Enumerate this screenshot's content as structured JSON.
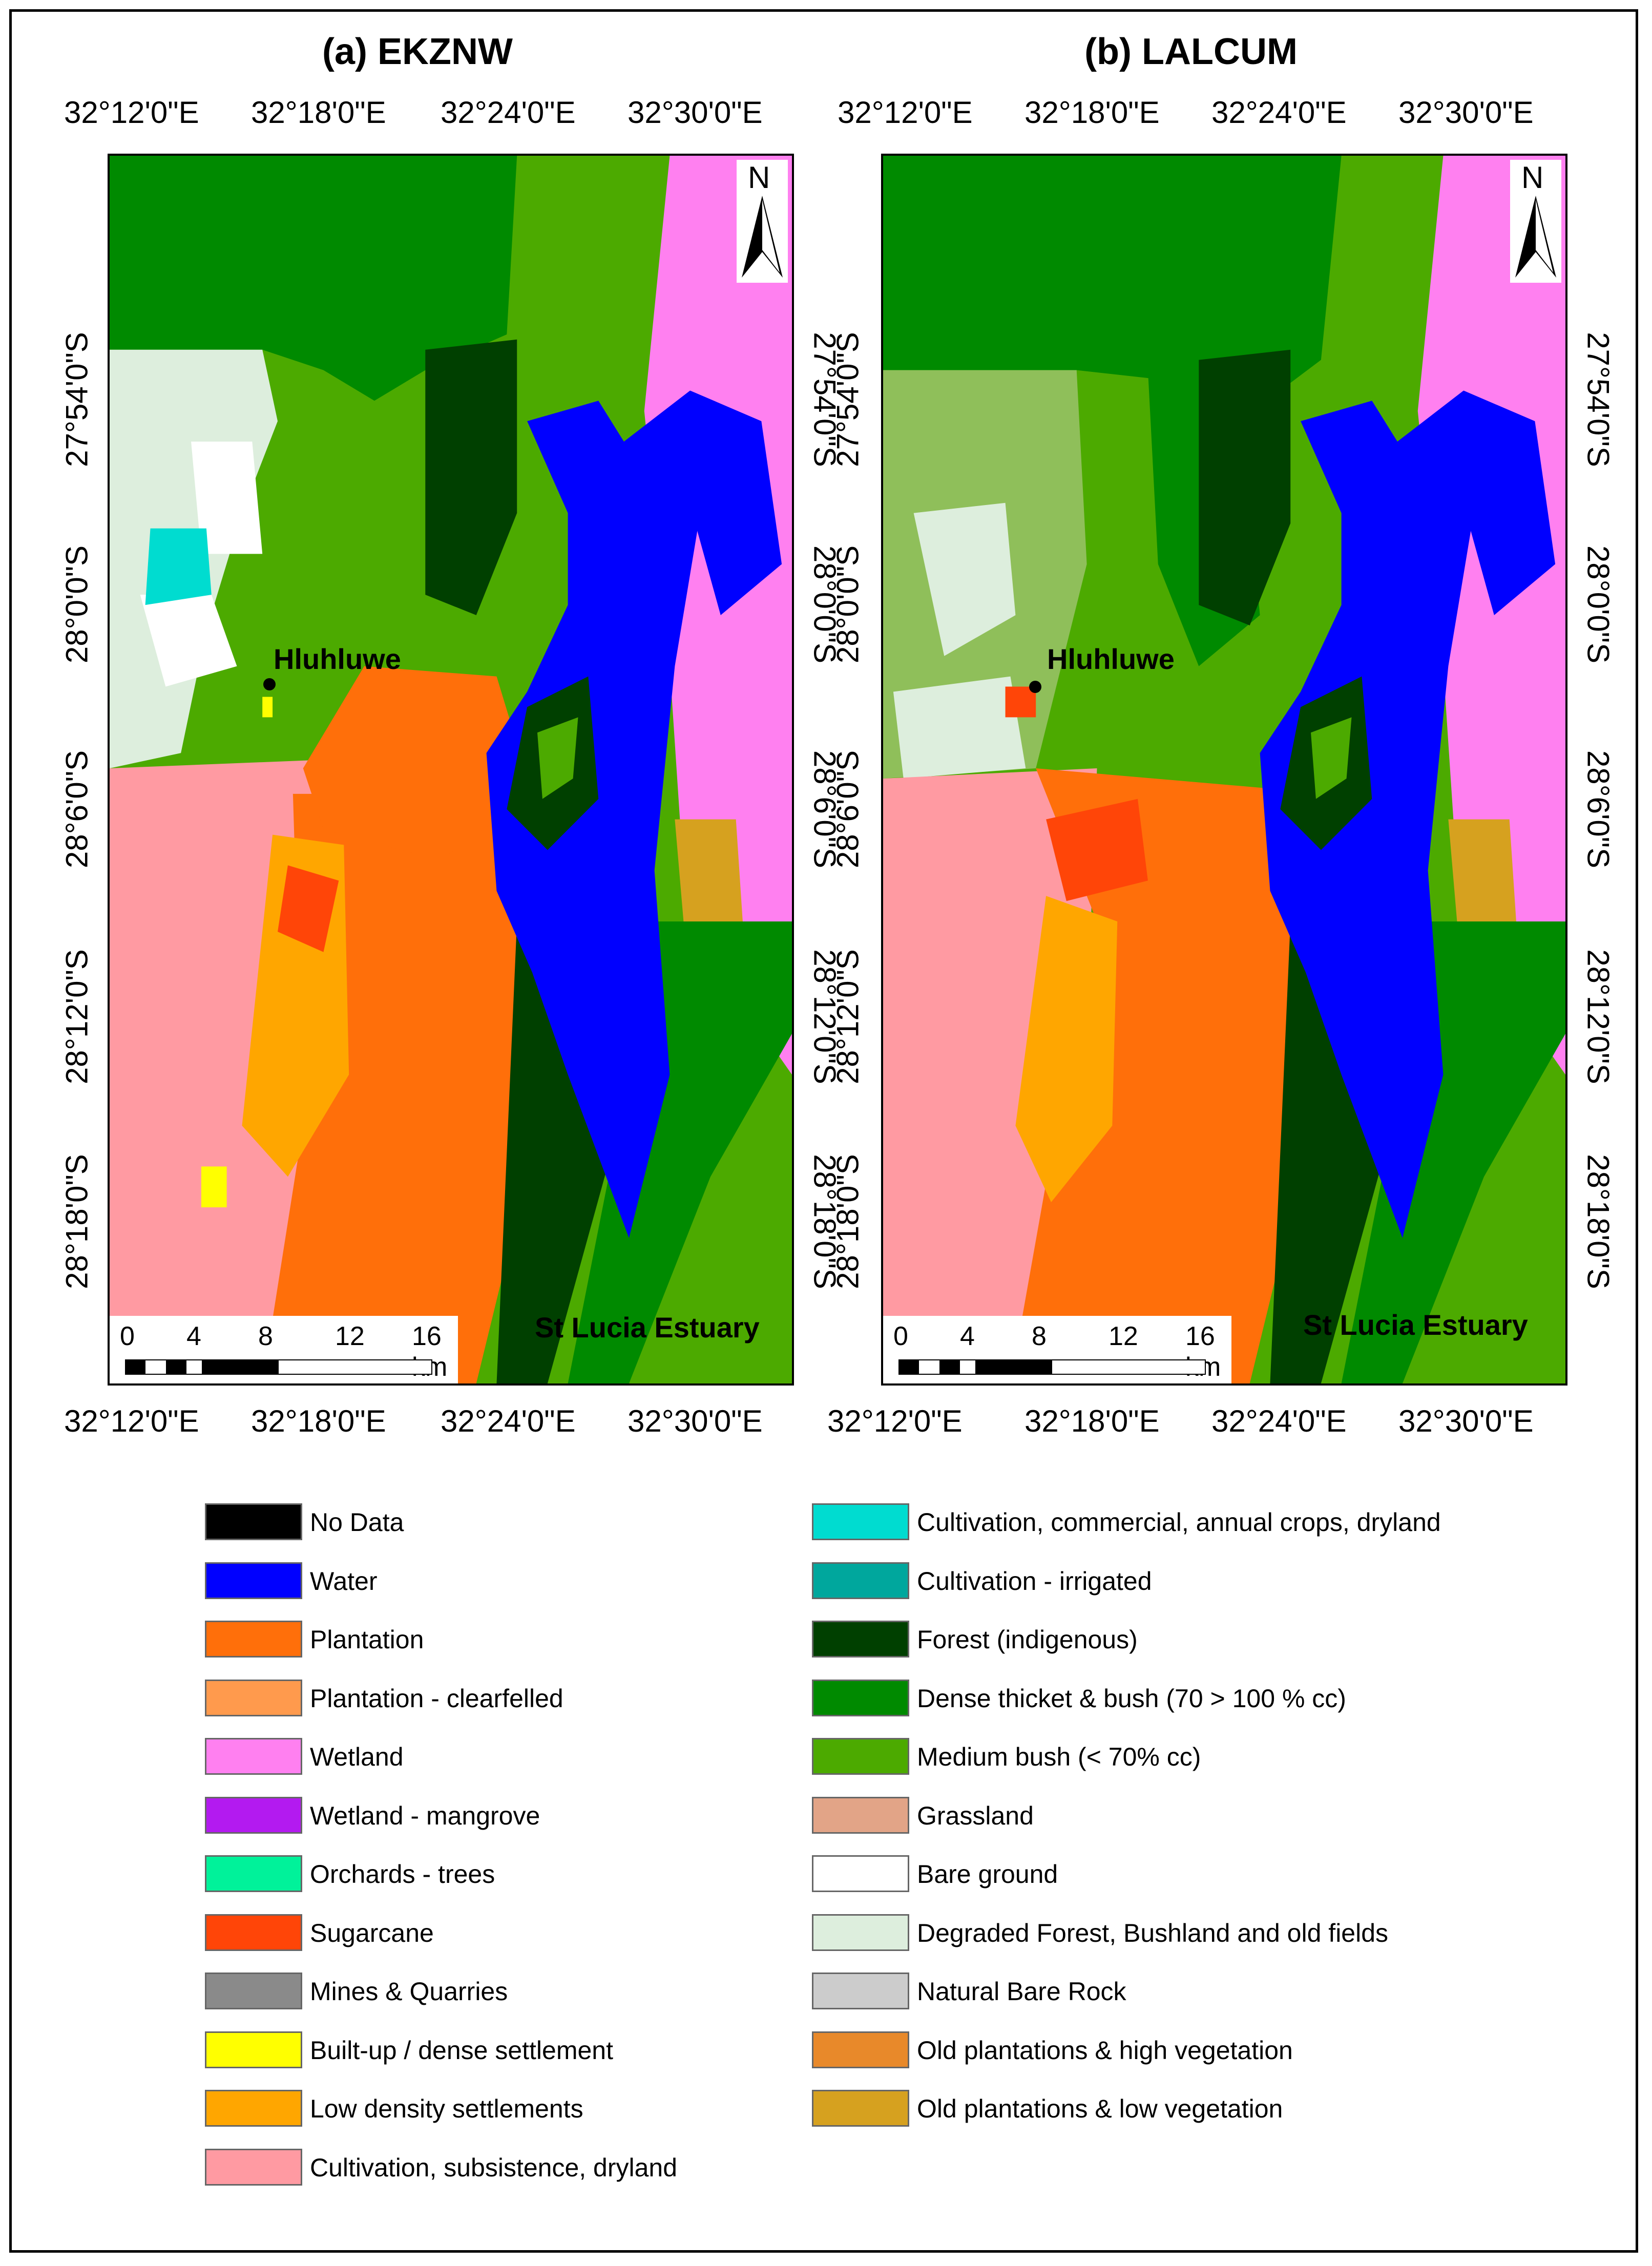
{
  "panels": [
    {
      "title": "(a) EKZNW",
      "top_axis": [
        "32°12'0\"E",
        "32°18'0\"E",
        "32°24'0\"E",
        "32°30'0\"E"
      ],
      "bottom_axis": [
        "32°12'0\"E",
        "32°18'0\"E",
        "32°24'0\"E",
        "32°30'0\"E"
      ],
      "left_axis": [
        "27°54'0\"S",
        "28°0'0\"S",
        "28°6'0\"S",
        "28°12'0\"S",
        "28°18'0\"S"
      ],
      "right_axis": [
        "27°54'0\"S",
        "28°0'0\"S",
        "28°6'0\"S",
        "28°12'0\"S",
        "28°18'0\"S"
      ],
      "places": [
        "Hluhluwe",
        "St Lucia Estuary"
      ],
      "north_label": "N",
      "scale_labels": [
        "0",
        "4",
        "8",
        "12",
        "16 km"
      ]
    },
    {
      "title": "(b) LALCUM",
      "top_axis": [
        "32°12'0\"E",
        "32°18'0\"E",
        "32°24'0\"E",
        "32°30'0\"E"
      ],
      "bottom_axis": [
        "32°12'0\"E",
        "32°18'0\"E",
        "32°24'0\"E",
        "32°30'0\"E"
      ],
      "left_axis": [
        "27°54'0\"S",
        "28°0'0\"S",
        "28°6'0\"S",
        "28°12'0\"S",
        "28°18'0\"S"
      ],
      "right_axis": [
        "27°54'0\"S",
        "28°0'0\"S",
        "28°6'0\"S",
        "28°12'0\"S",
        "28°18'0\"S"
      ],
      "places": [
        "Hluhluwe",
        "St Lucia Estuary"
      ],
      "north_label": "N",
      "scale_labels": [
        "0",
        "4",
        "8",
        "12",
        "16 km"
      ]
    }
  ],
  "legend_left": [
    {
      "label": "No Data",
      "color": "#000000"
    },
    {
      "label": "Water",
      "color": "#0000ff"
    },
    {
      "label": "Plantation",
      "color": "#ff6f0a"
    },
    {
      "label": "Plantation - clearfelled",
      "color": "#ff9a4d"
    },
    {
      "label": "Wetland",
      "color": "#ff80f0"
    },
    {
      "label": "Wetland - mangrove",
      "color": "#b31af0"
    },
    {
      "label": "Orchards - trees",
      "color": "#00f29a"
    },
    {
      "label": "Sugarcane",
      "color": "#ff4508"
    },
    {
      "label": "Mines & Quarries",
      "color": "#8a8a8a"
    },
    {
      "label": "Built-up / dense settlement",
      "color": "#ffff00"
    },
    {
      "label": "Low density settlements",
      "color": "#ffa600"
    },
    {
      "label": "Cultivation, subsistence, dryland",
      "color": "#ff9aa2"
    }
  ],
  "legend_right": [
    {
      "label": "Cultivation, commercial, annual crops, dryland",
      "color": "#00dcd0"
    },
    {
      "label": "Cultivation - irrigated",
      "color": "#00a79d"
    },
    {
      "label": "Forest (indigenous)",
      "color": "#004000"
    },
    {
      "label": "Dense thicket & bush (70 > 100 % cc)",
      "color": "#008a00"
    },
    {
      "label": "Medium bush (< 70% cc)",
      "color": "#4caa00"
    },
    {
      "label": "Grassland",
      "color": "#e2a487"
    },
    {
      "label": "Bare ground",
      "color": "#ffffff"
    },
    {
      "label": "Degraded Forest, Bushland and old fields",
      "color": "#ddeedd"
    },
    {
      "label": "Natural Bare Rock",
      "color": "#cccccc"
    },
    {
      "label": "Old plantations & high vegetation",
      "color": "#e8892a"
    },
    {
      "label": "Old plantations & low vegetation",
      "color": "#d6a11f"
    }
  ]
}
